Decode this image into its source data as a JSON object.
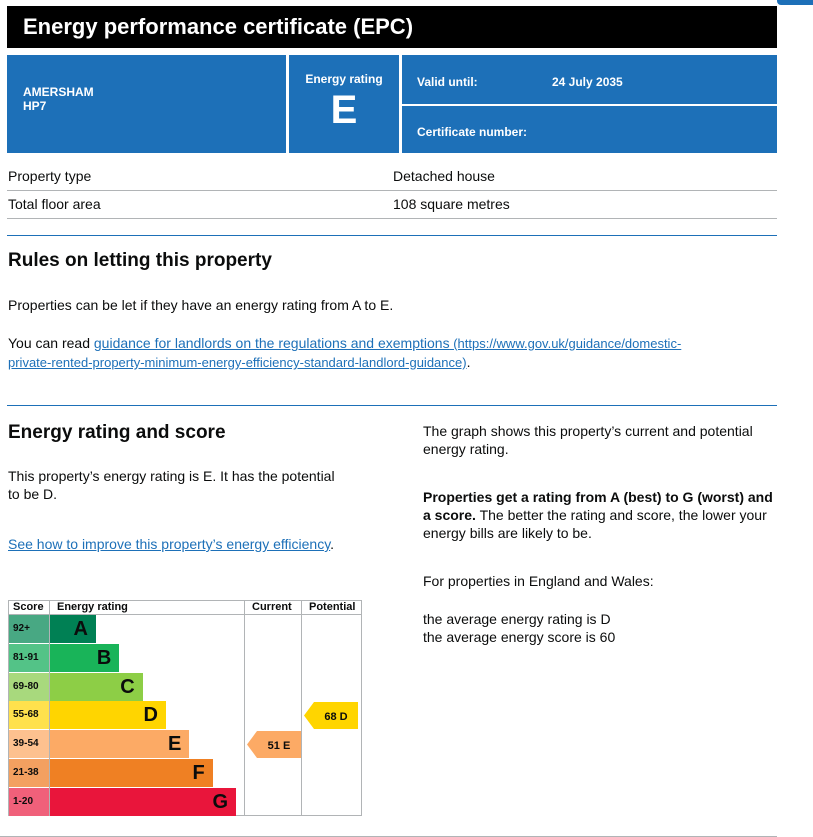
{
  "header": {
    "title": "Energy performance certificate (EPC)",
    "address_line1": "AMERSHAM",
    "address_line2": "HP7",
    "energy_rating_label": "Energy rating",
    "energy_rating_value": "E",
    "valid_until_label": "Valid until:",
    "valid_until_value": "24 July 2035",
    "certificate_number_label": "Certificate number:"
  },
  "details": [
    {
      "label": "Property type",
      "value": "Detached house"
    },
    {
      "label": "Total floor area",
      "value": "108 square metres"
    }
  ],
  "letting": {
    "heading": "Rules on letting this property",
    "p1": "Properties can be let if they have an energy rating from A to E.",
    "p2_prefix": "You can read ",
    "link_text": "guidance for landlords on the regulations and exemptions",
    "link_url_line1": " (https://www.gov.uk/guidance/domestic-",
    "link_url_line2": "private-rented-property-minimum-energy-efficiency-standard-landlord-guidance)",
    "p2_suffix": "."
  },
  "rating_section": {
    "heading": "Energy rating and score",
    "p1": "This property’s energy rating is E. It has the potential to be D.",
    "link": "See how to improve this property’s energy efficiency",
    "link_suffix": ".",
    "right_p1": "The graph shows this property’s current and potential energy rating.",
    "right_p2_bold": "Properties get a rating from A (best) to G (worst) and a score.",
    "right_p2_rest": " The better the rating and score, the lower your energy bills are likely to be.",
    "right_p3": "For properties in England and Wales:",
    "right_p4_line1": "the average energy rating is D",
    "right_p4_line2": "the average energy score is 60"
  },
  "chart_data": {
    "type": "table",
    "headers": [
      "Score",
      "Energy rating",
      "Current",
      "Potential"
    ],
    "bands": [
      {
        "score": "92+",
        "letter": "A",
        "color": "#008054",
        "score_bg": "#48a883"
      },
      {
        "score": "81-91",
        "letter": "B",
        "color": "#19b459",
        "score_bg": "#53c387"
      },
      {
        "score": "69-80",
        "letter": "C",
        "color": "#8dce46",
        "score_bg": "#a8d97d"
      },
      {
        "score": "55-68",
        "letter": "D",
        "color": "#ffd500",
        "score_bg": "#ffe14d"
      },
      {
        "score": "39-54",
        "letter": "E",
        "color": "#fcaa65",
        "score_bg": "#fdc18f"
      },
      {
        "score": "21-38",
        "letter": "F",
        "color": "#ef8023",
        "score_bg": "#f3a060"
      },
      {
        "score": "1-20",
        "letter": "G",
        "color": "#e9153b",
        "score_bg": "#f0607a"
      }
    ],
    "current": {
      "score": 51,
      "letter": "E",
      "label": "51  E",
      "color": "#fcaa65"
    },
    "potential": {
      "score": 68,
      "letter": "D",
      "label": "68  D",
      "color": "#ffd500"
    }
  }
}
